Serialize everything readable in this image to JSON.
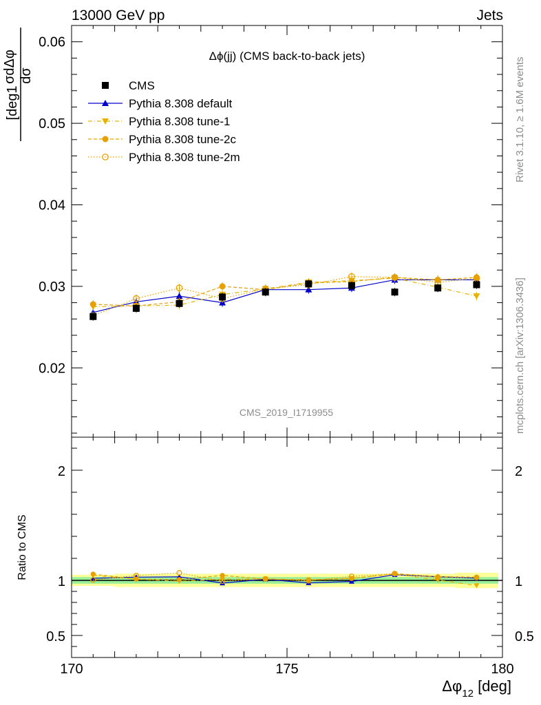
{
  "header": {
    "left": "13000 GeV pp",
    "right": "Jets"
  },
  "side_text": {
    "rivet": "Rivet 3.1.10, ≥ 1.6M events",
    "mcplots": "mcplots.cern.ch [arXiv:1306.3436]"
  },
  "watermark": "CMS_2019_I1719955",
  "ratio_ylabel": "Ratio to CMS",
  "chart_data": {
    "type": "line",
    "title": "Δϕ(jj) (CMS back-to-back jets)",
    "xlabel": "Δϕ_12 [deg]",
    "ylabel": "1/σ dσ/dΔϕ_12 [deg^-1]",
    "xlim": [
      170,
      180
    ],
    "ylim": [
      0.0115,
      0.062
    ],
    "ratio_ylim": [
      0.3,
      2.3
    ],
    "x_ticks": [
      170,
      175,
      180
    ],
    "y_ticks": [
      0.02,
      0.03,
      0.04,
      0.05,
      0.06
    ],
    "y_tick_labels": [
      "0.02",
      "0.03",
      "0.04",
      "0.05",
      "0.06"
    ],
    "ratio_ticks": [
      0.5,
      1,
      2
    ],
    "ratio_tick_labels": [
      "0.5",
      "1",
      "2"
    ],
    "x_tick_labels": [
      "170",
      "175",
      "180"
    ],
    "x": [
      170.5,
      171.5,
      172.5,
      173.5,
      174.5,
      175.5,
      176.5,
      177.5,
      178.5,
      179.4
    ],
    "series": [
      {
        "name": "CMS",
        "color": "#000000",
        "marker": "square",
        "dash": "none",
        "values": [
          0.0263,
          0.0273,
          0.0279,
          0.0287,
          0.0293,
          0.0303,
          0.0301,
          0.0293,
          0.0298,
          0.0302
        ]
      },
      {
        "name": "Pythia 8.308 default",
        "color": "#0000cc",
        "marker": "triangle-up",
        "dash": "solid",
        "values": [
          0.0268,
          0.0281,
          0.0288,
          0.028,
          0.0296,
          0.0296,
          0.0298,
          0.0308,
          0.0308,
          0.0308
        ]
      },
      {
        "name": "Pythia 8.308 tune-1",
        "color": "#e6b400",
        "marker": "triangle-down",
        "dash": "dashdot",
        "values": [
          0.0275,
          0.0276,
          0.0277,
          0.029,
          0.0297,
          0.0305,
          0.0307,
          0.031,
          0.0299,
          0.0288
        ]
      },
      {
        "name": "Pythia 8.308 tune-2c",
        "color": "#e6a000",
        "marker": "circle",
        "dash": "dashed",
        "values": [
          0.0278,
          0.0276,
          0.0281,
          0.03,
          0.0296,
          0.0304,
          0.0306,
          0.0311,
          0.0308,
          0.0311
        ]
      },
      {
        "name": "Pythia 8.308 tune-2m",
        "color": "#e6a000",
        "marker": "circle-open",
        "dash": "dotted",
        "values": [
          0.0264,
          0.0285,
          0.0298,
          0.0285,
          0.0297,
          0.0302,
          0.0312,
          0.0311,
          0.0305,
          0.031
        ]
      }
    ],
    "ratio_band_inner": [
      0.03,
      0.03,
      0.03,
      0.03,
      0.03,
      0.03,
      0.03,
      0.03,
      0.03,
      0.03
    ],
    "ratio_band_outer": [
      0.05,
      0.06,
      0.06,
      0.06,
      0.06,
      0.06,
      0.06,
      0.06,
      0.06,
      0.07
    ],
    "legend_position": "top-left",
    "grid": false
  }
}
